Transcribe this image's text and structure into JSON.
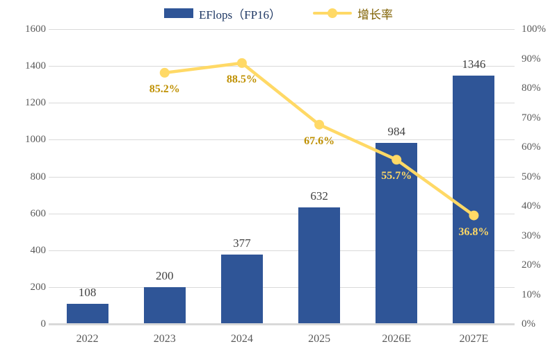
{
  "chart_data": {
    "type": "bar",
    "combo": "bar+line",
    "title": "",
    "categories": [
      "2022",
      "2023",
      "2024",
      "2025",
      "2026E",
      "2027E"
    ],
    "series": [
      {
        "name": "EFlops（FP16）",
        "type": "bar",
        "axis": "left",
        "values": [
          108,
          200,
          377,
          632,
          984,
          1346
        ],
        "value_labels": [
          "108",
          "200",
          "377",
          "632",
          "984",
          "1346"
        ]
      },
      {
        "name": "增长率",
        "type": "line",
        "axis": "right",
        "values": [
          null,
          85.2,
          88.5,
          67.6,
          55.7,
          36.8
        ],
        "value_labels": [
          "",
          "85.2%",
          "88.5%",
          "67.6%",
          "55.7%",
          "36.8%"
        ],
        "label_colors": [
          "",
          "#BF9000",
          "#BF9000",
          "#BF9000",
          "#FFD966",
          "#FFD966"
        ]
      }
    ],
    "left_axis": {
      "min": 0,
      "max": 1600,
      "step": 200,
      "ticks": [
        "0",
        "200",
        "400",
        "600",
        "800",
        "1000",
        "1200",
        "1400",
        "1600"
      ]
    },
    "right_axis": {
      "min": 0,
      "max": 100,
      "step": 10,
      "ticks": [
        "0%",
        "10%",
        "20%",
        "30%",
        "40%",
        "50%",
        "60%",
        "70%",
        "80%",
        "90%",
        "100%"
      ]
    },
    "grid": true,
    "legend_position": "top-center"
  },
  "legend": {
    "items": [
      {
        "label": "EFlops（FP16）",
        "swatch": "bar",
        "text_color": "#1F3864"
      },
      {
        "label": "增长率",
        "swatch": "line",
        "text_color": "#7F6000"
      }
    ]
  },
  "colors": {
    "bar": "#2F5597",
    "line": "#FFD966",
    "marker": "#FFD966",
    "grid": "#D9D9D9",
    "axis_line": "#D9D9D9",
    "axis_text": "#595959",
    "bar_label_text": "#404040",
    "background": "#FFFFFF"
  }
}
